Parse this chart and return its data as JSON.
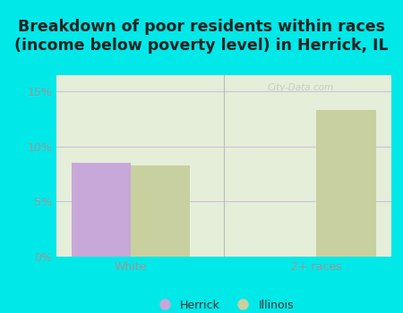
{
  "title": "Breakdown of poor residents within races\n(income below poverty level) in Herrick, IL",
  "categories": [
    "White",
    "2+ races"
  ],
  "herrick_values": [
    8.5,
    0.0
  ],
  "illinois_values": [
    8.3,
    13.3
  ],
  "herrick_color": "#c8a8d8",
  "illinois_color": "#c8d0a0",
  "background_outer": "#00e8e8",
  "background_plot": "#e4eed8",
  "grid_color": "#d0c0d8",
  "ylabel_ticks": [
    0,
    5,
    10,
    15
  ],
  "ylabel_labels": [
    "0%",
    "5%",
    "10%",
    "15%"
  ],
  "ylim": [
    0,
    16.5
  ],
  "bar_width": 0.32,
  "title_fontsize": 12.5,
  "tick_fontsize": 9,
  "legend_fontsize": 9,
  "watermark": "City-Data.com",
  "tick_color": "#999999",
  "title_color": "#222222",
  "sep_color": "#bbbbbb"
}
